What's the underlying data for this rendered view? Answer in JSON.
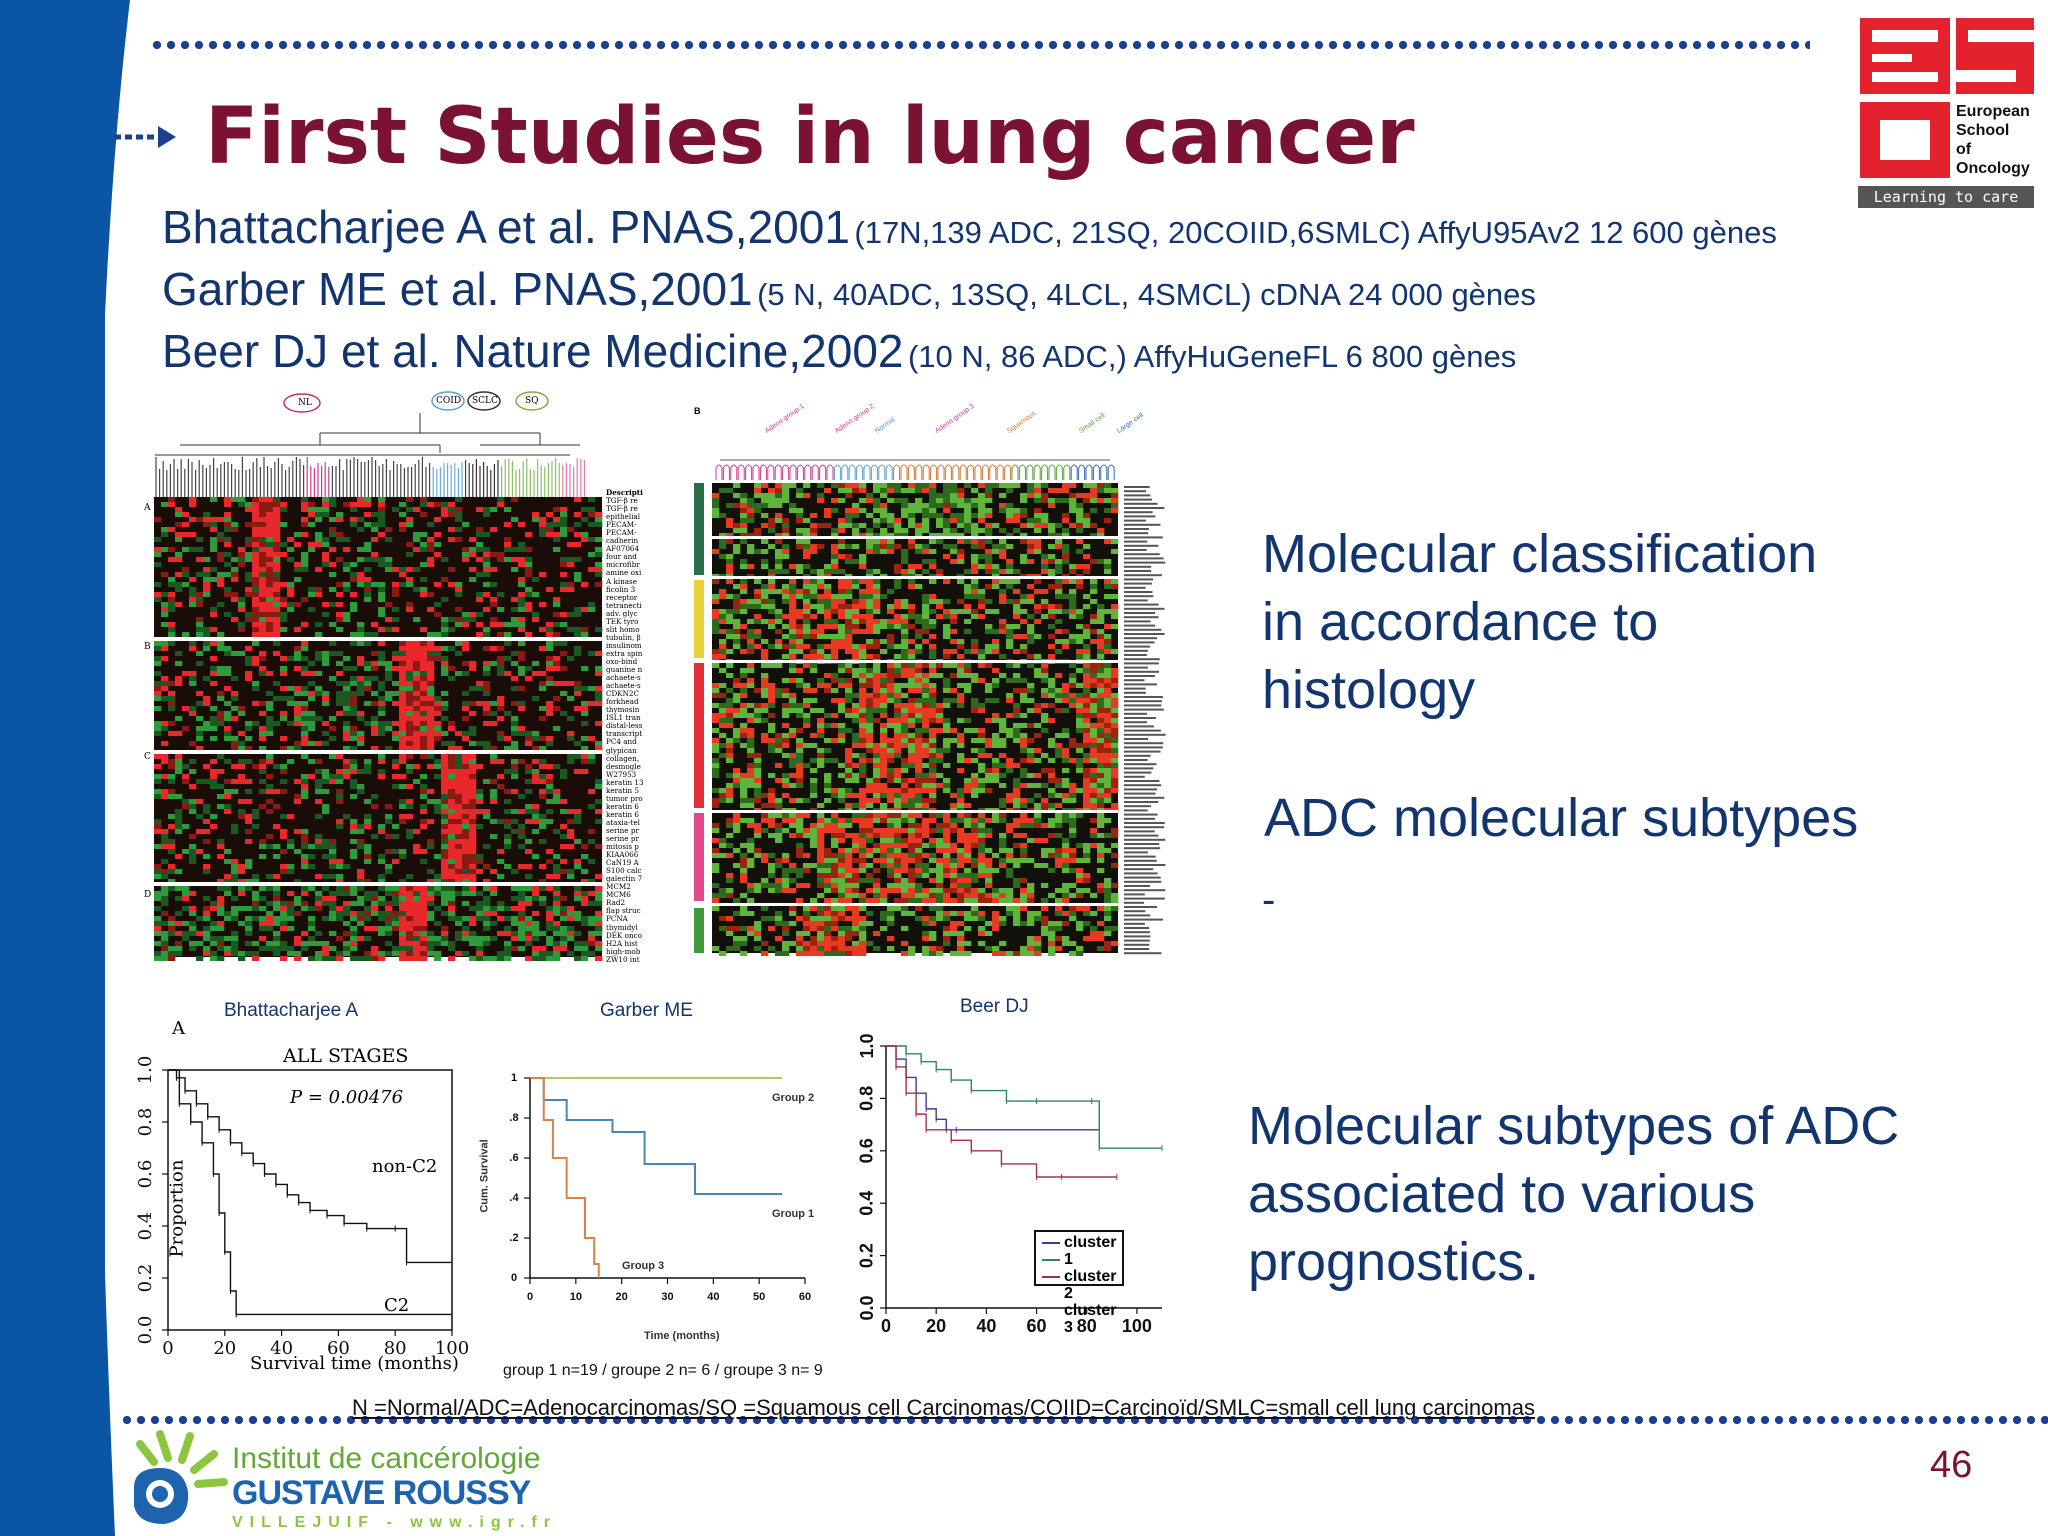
{
  "slide": {
    "title": "First Studies in lung cancer",
    "page_number": "46"
  },
  "references": [
    {
      "main": "Bhattacharjee A et al. PNAS,2001",
      "detail": "(17N,139 ADC, 21SQ, 20COIID,6SMLC) AffyU95Av2 12 600 gènes"
    },
    {
      "main": "Garber ME et al. PNAS,2001",
      "detail": "(5 N, 40ADC, 13SQ, 4LCL, 4SMCL) cDNA 24 000 gènes"
    },
    {
      "main": "Beer DJ et al. Nature Medicine,2002",
      "detail": "(10 N, 86 ADC,) AffyHuGeneFL  6 800 gènes"
    }
  ],
  "side_text": {
    "block1": [
      "Molecular classification",
      "in accordance to",
      "histology"
    ],
    "block2": "ADC molecular subtypes",
    "block2_dash": "-",
    "block3": [
      "Molecular subtypes of ADC",
      "associated to various",
      "prognostics."
    ]
  },
  "heatmap1": {
    "cluster_labels": [
      "NL",
      "COID",
      "SCLC",
      "SQ"
    ],
    "row_labels": [
      "A",
      "B",
      "C",
      "D"
    ],
    "descriptor_header": "Descripti",
    "descriptors": [
      "TGF-β re",
      "TGF-β re",
      "epithelial",
      "PECAM-",
      "PECAM-",
      "cadherin",
      "AF07064",
      "four and",
      "microfibr",
      "amine oxi",
      "A kinase",
      "ficolin 3",
      "receptor",
      "tetranecti",
      "adv. glyc",
      "TEK tyro",
      "slit homo",
      "tubulin, β",
      "insulinom",
      "extra spin",
      "oxo-bind",
      "guanine n",
      "achaete-s",
      "achaete-s",
      "CDKN2C",
      "forkhead",
      "thymosin",
      "ISL1 tran",
      "distal-less",
      "transcript",
      "PC4 and",
      "glypican",
      "collagen,",
      "desmogle",
      "W27953",
      "keratin 13",
      "keratin 5",
      "tumor pro",
      "keratin 6",
      "keratin 6",
      "ataxia-tel",
      "serine pr",
      "serine pr",
      "mitosis p",
      "KIAA066",
      "CaN19 A",
      "S100 calc",
      "galectin 7",
      "MCM2",
      "MCM6",
      "Rad2",
      "flap struc",
      "PCNA",
      "thymidyl",
      "DEK onco",
      "H2A hist",
      "high-mob",
      "ZW10 int"
    ]
  },
  "heatmap2": {
    "panel_letter": "B",
    "group_labels": [
      "Adeno group 1",
      "Adeno group 2",
      "Normal",
      "Adeno group 3",
      "Squamous",
      "Small cell",
      "Large cell"
    ]
  },
  "survival_labels": {
    "bhatt": "Bhattacharjee A",
    "garber": "Garber ME",
    "beer": "Beer DJ",
    "garber_footnote": "group 1 n=19 / groupe 2 n= 6 / groupe 3 n= 9"
  },
  "footnote": "N =Normal/ADC=Adenocarcinomas/SQ =Squamous cell Carcinomas/COIID=Carcinoïd/SMLC=small cell lung carcinomas",
  "logo_eso": {
    "lines": [
      "European",
      "School",
      "of",
      "Oncology"
    ],
    "tagline": "Learning to care"
  },
  "logo_igr": {
    "line1": "Institut de cancérologie",
    "line2": "GUSTAVE ROUSSY",
    "line3": "VILLEJUIF - www.igr.fr"
  },
  "chart_data": [
    {
      "type": "line",
      "panel": "A",
      "title": "ALL STAGES",
      "annotation": "P = 0.00476",
      "xlabel": "Survival time (months)",
      "ylabel": "Proportion",
      "xlim": [
        0,
        100
      ],
      "ylim": [
        0,
        1
      ],
      "x_ticks": [
        "0",
        "20",
        "40",
        "60",
        "80",
        "100"
      ],
      "y_ticks": [
        "0.0",
        "0.2",
        "0.4",
        "0.6",
        "0.8",
        "1.0"
      ],
      "series": [
        {
          "name": "non-C2",
          "x": [
            0,
            3,
            6,
            10,
            14,
            18,
            22,
            26,
            30,
            34,
            38,
            42,
            46,
            50,
            56,
            62,
            70,
            80,
            84,
            100
          ],
          "y": [
            1.0,
            0.97,
            0.92,
            0.87,
            0.82,
            0.77,
            0.72,
            0.68,
            0.64,
            0.6,
            0.56,
            0.52,
            0.49,
            0.46,
            0.44,
            0.41,
            0.39,
            0.39,
            0.26,
            0.26
          ]
        },
        {
          "name": "C2",
          "x": [
            0,
            4,
            8,
            12,
            16,
            18,
            20,
            22,
            24,
            100
          ],
          "y": [
            1.0,
            0.87,
            0.8,
            0.72,
            0.6,
            0.45,
            0.3,
            0.15,
            0.06,
            0.06
          ]
        }
      ]
    },
    {
      "type": "line",
      "xlabel": "Time (months)",
      "ylabel": "Cum. Survival",
      "xlim": [
        0,
        60
      ],
      "ylim": [
        0,
        1
      ],
      "x_ticks": [
        "0",
        "10",
        "20",
        "30",
        "40",
        "50",
        "60"
      ],
      "y_ticks": [
        "0",
        ".2",
        ".4",
        ".6",
        ".8",
        "1"
      ],
      "series": [
        {
          "name": "Group 2",
          "color": "#b9c46a",
          "x": [
            0,
            55
          ],
          "y": [
            1.0,
            1.0
          ]
        },
        {
          "name": "Group 1",
          "color": "#4a86b3",
          "x": [
            0,
            3,
            8,
            18,
            25,
            36,
            55
          ],
          "y": [
            1.0,
            0.89,
            0.79,
            0.73,
            0.57,
            0.42,
            0.42
          ]
        },
        {
          "name": "Group 3",
          "color": "#d9824a",
          "x": [
            0,
            3,
            5,
            8,
            12,
            14,
            15
          ],
          "y": [
            1.0,
            0.79,
            0.6,
            0.4,
            0.2,
            0.07,
            0.0
          ]
        }
      ]
    },
    {
      "type": "line",
      "xlim": [
        0,
        110
      ],
      "ylim": [
        0,
        1
      ],
      "x_ticks": [
        "0",
        "20",
        "40",
        "60",
        "80",
        "100"
      ],
      "y_ticks": [
        "0.0",
        "0.2",
        "0.4",
        "0.6",
        "0.8",
        "1.0"
      ],
      "series": [
        {
          "name": "cluster 1",
          "color": "#3b3f8f",
          "x": [
            0,
            4,
            8,
            12,
            16,
            20,
            24,
            28,
            85
          ],
          "y": [
            1.0,
            0.95,
            0.88,
            0.82,
            0.76,
            0.72,
            0.68,
            0.68,
            0.68
          ]
        },
        {
          "name": "cluster 2",
          "color": "#2e8a55",
          "x": [
            0,
            8,
            14,
            20,
            26,
            34,
            48,
            60,
            82,
            85,
            110
          ],
          "y": [
            1.0,
            0.97,
            0.94,
            0.91,
            0.87,
            0.83,
            0.79,
            0.79,
            0.79,
            0.61,
            0.61
          ]
        },
        {
          "name": "cluster 3",
          "color": "#a33344",
          "x": [
            0,
            4,
            8,
            12,
            16,
            26,
            34,
            46,
            60,
            70,
            92
          ],
          "y": [
            1.0,
            0.92,
            0.82,
            0.74,
            0.68,
            0.64,
            0.6,
            0.55,
            0.5,
            0.5,
            0.5
          ]
        }
      ]
    }
  ]
}
